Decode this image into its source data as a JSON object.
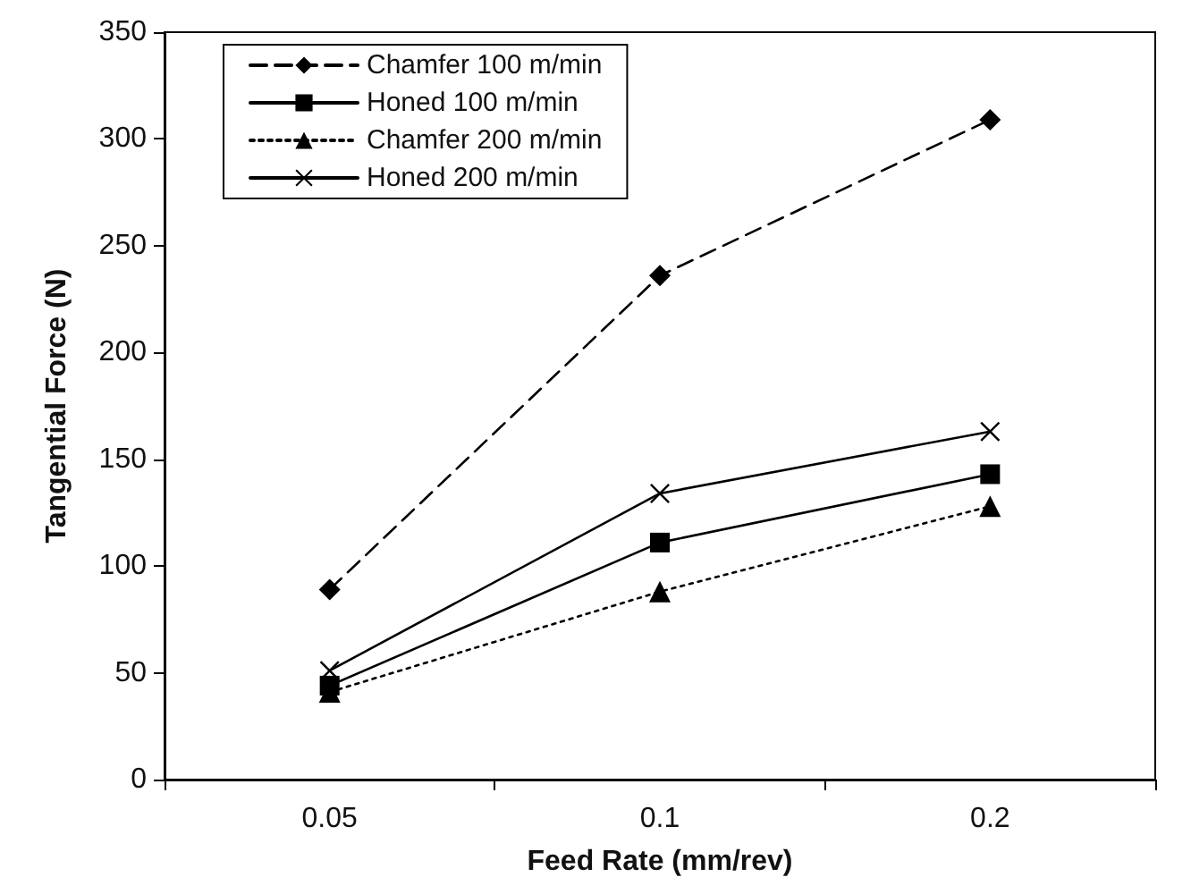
{
  "chart_data": {
    "type": "line",
    "xlabel": "Feed Rate (mm/rev)",
    "ylabel": "Tangential Force (N)",
    "categories": [
      "0.05",
      "0.1",
      "0.2"
    ],
    "series": [
      {
        "name": "Chamfer 100 m/min",
        "color": "#000000",
        "marker": "diamond",
        "line_style": "dashed",
        "values": [
          89,
          236,
          309
        ]
      },
      {
        "name": "Honed 100 m/min",
        "color": "#000000",
        "marker": "square",
        "line_style": "solid",
        "values": [
          44,
          111,
          143
        ]
      },
      {
        "name": "Chamfer 200 m/min",
        "color": "#000000",
        "marker": "triangle",
        "line_style": "dotted",
        "values": [
          41,
          88,
          128
        ]
      },
      {
        "name": "Honed 200 m/min",
        "color": "#000000",
        "marker": "cross",
        "line_style": "solid",
        "values": [
          51,
          134,
          163
        ]
      }
    ],
    "ylim": [
      0,
      350
    ],
    "yticks": [
      0,
      50,
      100,
      150,
      200,
      250,
      300,
      350
    ],
    "grid": false,
    "legend": "top left"
  }
}
